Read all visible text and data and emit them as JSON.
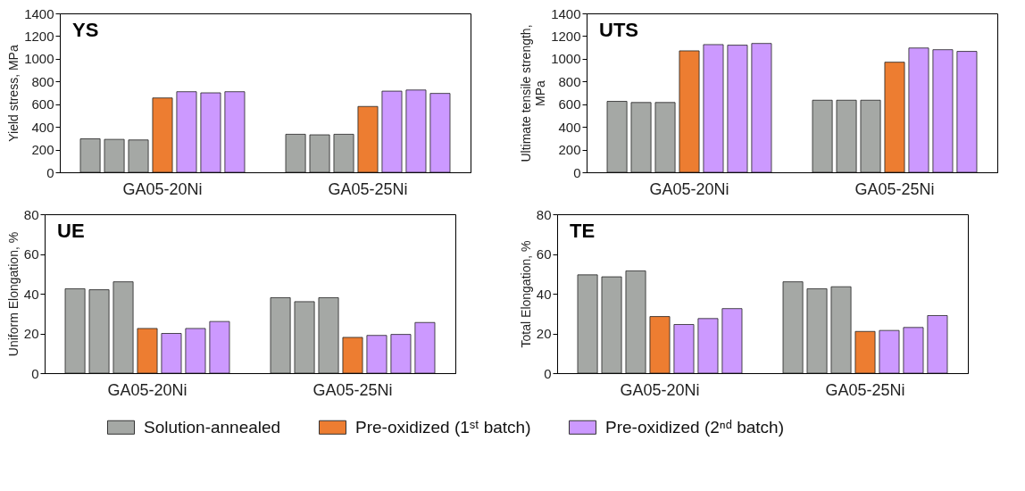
{
  "chart_data": [
    {
      "type": "bar",
      "title": "YS",
      "ylabel": "Yield stress, MPa",
      "categories": [
        "GA05-20Ni",
        "GA05-25Ni"
      ],
      "ylim": [
        0,
        1400
      ],
      "yticks": [
        0,
        200,
        400,
        600,
        800,
        1000,
        1200,
        1400
      ],
      "series": [
        {
          "color": "#a5a8a5",
          "values": [
            295,
            335
          ]
        },
        {
          "color": "#a5a8a5",
          "values": [
            290,
            330
          ]
        },
        {
          "color": "#a5a8a5",
          "values": [
            285,
            335
          ]
        },
        {
          "color": "#ed7d31",
          "values": [
            655,
            580
          ]
        },
        {
          "color": "#cc99ff",
          "values": [
            710,
            715
          ]
        },
        {
          "color": "#cc99ff",
          "values": [
            700,
            725
          ]
        },
        {
          "color": "#cc99ff",
          "values": [
            710,
            695
          ]
        }
      ]
    },
    {
      "type": "bar",
      "title": "UTS",
      "ylabel": "Ultimate tensile strength, MPa",
      "categories": [
        "GA05-20Ni",
        "GA05-25Ni"
      ],
      "ylim": [
        0,
        1400
      ],
      "yticks": [
        0,
        200,
        400,
        600,
        800,
        1000,
        1200,
        1400
      ],
      "series": [
        {
          "color": "#a5a8a5",
          "values": [
            625,
            635
          ]
        },
        {
          "color": "#a5a8a5",
          "values": [
            615,
            635
          ]
        },
        {
          "color": "#a5a8a5",
          "values": [
            615,
            635
          ]
        },
        {
          "color": "#ed7d31",
          "values": [
            1070,
            970
          ]
        },
        {
          "color": "#cc99ff",
          "values": [
            1125,
            1095
          ]
        },
        {
          "color": "#cc99ff",
          "values": [
            1120,
            1080
          ]
        },
        {
          "color": "#cc99ff",
          "values": [
            1135,
            1065
          ]
        }
      ]
    },
    {
      "type": "bar",
      "title": "UE",
      "ylabel": "Uniform Elongation, %",
      "categories": [
        "GA05-20Ni",
        "GA05-25Ni"
      ],
      "ylim": [
        0,
        80
      ],
      "yticks": [
        0,
        20,
        40,
        60,
        80
      ],
      "legend": "bottom",
      "series": [
        {
          "name": "Solution-annealed",
          "color": "#a5a8a5",
          "values": [
            42.5,
            38
          ]
        },
        {
          "color": "#a5a8a5",
          "values": [
            42,
            36
          ]
        },
        {
          "color": "#a5a8a5",
          "values": [
            46,
            38
          ]
        },
        {
          "name": "Pre-oxidized (1ˢᵗ batch)",
          "color": "#ed7d31",
          "values": [
            22.5,
            18
          ]
        },
        {
          "name": "Pre-oxidized (2ⁿᵈ batch)",
          "color": "#cc99ff",
          "values": [
            20,
            19
          ]
        },
        {
          "color": "#cc99ff",
          "values": [
            22.5,
            19.5
          ]
        },
        {
          "color": "#cc99ff",
          "values": [
            26,
            25.5
          ]
        }
      ]
    },
    {
      "type": "bar",
      "title": "TE",
      "ylabel": "Total Elongation, %",
      "categories": [
        "GA05-20Ni",
        "GA05-25Ni"
      ],
      "ylim": [
        0,
        80
      ],
      "yticks": [
        0,
        20,
        40,
        60,
        80
      ],
      "series": [
        {
          "color": "#a5a8a5",
          "values": [
            49.5,
            46
          ]
        },
        {
          "color": "#a5a8a5",
          "values": [
            48.5,
            42.5
          ]
        },
        {
          "color": "#a5a8a5",
          "values": [
            51.5,
            43.5
          ]
        },
        {
          "color": "#ed7d31",
          "values": [
            28.5,
            21
          ]
        },
        {
          "color": "#cc99ff",
          "values": [
            24.5,
            21.5
          ]
        },
        {
          "color": "#cc99ff",
          "values": [
            27.5,
            23
          ]
        },
        {
          "color": "#cc99ff",
          "values": [
            32.5,
            29
          ]
        }
      ]
    }
  ]
}
